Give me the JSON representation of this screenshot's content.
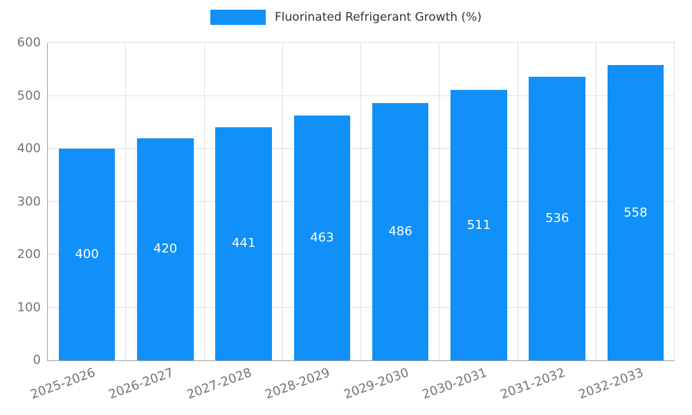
{
  "legend": {
    "label": "Fluorinated Refrigerant Growth (%)"
  },
  "chart_data": {
    "type": "bar",
    "title": "",
    "xlabel": "",
    "ylabel": "",
    "categories": [
      "2025-2026",
      "2026-2027",
      "2027-2028",
      "2028-2029",
      "2029-2030",
      "2030-2031",
      "2031-2032",
      "2032-2033"
    ],
    "series": [
      {
        "name": "Fluorinated Refrigerant Growth (%)",
        "values": [
          400,
          420,
          441,
          463,
          486,
          511,
          536,
          558
        ]
      }
    ],
    "ylim": [
      0,
      600
    ],
    "yticks": [
      0,
      100,
      200,
      300,
      400,
      500,
      600
    ],
    "grid": true,
    "legend_position": "top",
    "bar_value_labels_inside": true,
    "x_label_rotation_deg": -20,
    "colors": {
      "bar": "#1090F8",
      "bar_label": "#FFFFFF",
      "axis_text": "#757575",
      "legend_text": "#333333",
      "grid_line": "#E0E0E0",
      "axis_line": "#9E9E9E",
      "background": "#FFFFFF"
    }
  }
}
